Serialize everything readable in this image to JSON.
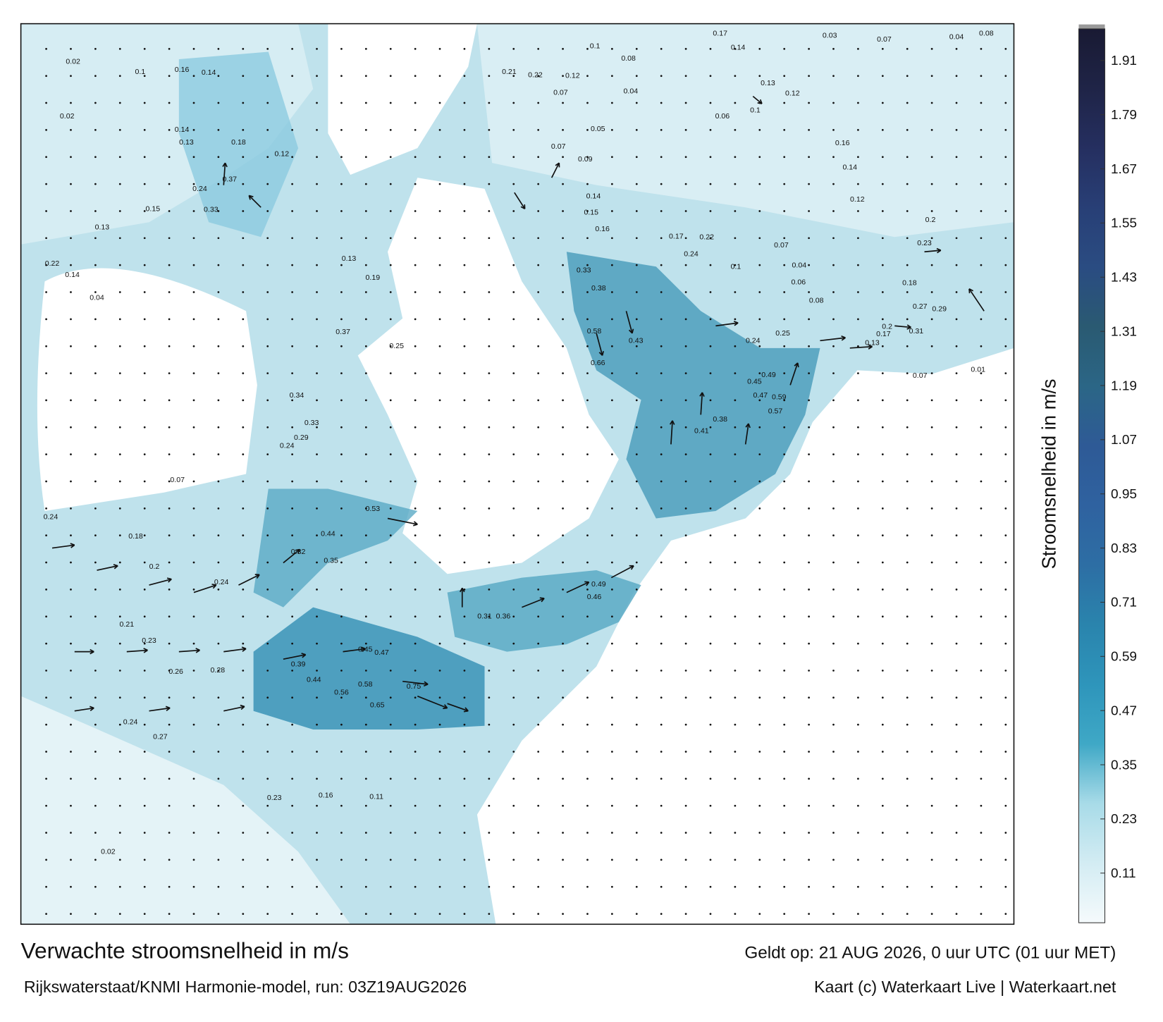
{
  "header": {
    "title": "Verwachte stroomsnelheid in m/s",
    "valid": "Geldt op: 21 AUG 2026, 0 uur UTC (01 uur MET)"
  },
  "footer": {
    "source": "Rijkswaterstaat/KNMI Harmonie-model, run: 03Z19AUG2026",
    "credit": "Kaart (c) Waterkaart Live | Waterkaart.net"
  },
  "colorbar": {
    "label": "Stroomsnelheid in m/s",
    "lim": [
      0,
      1.98
    ],
    "ticks": [
      0.11,
      0.23,
      0.35,
      0.47,
      0.59,
      0.71,
      0.83,
      0.95,
      1.07,
      1.19,
      1.31,
      1.43,
      1.55,
      1.67,
      1.79,
      1.91
    ],
    "colors": [
      "#f5fafc",
      "#d3ecf3",
      "#a8dbe8",
      "#3fa8c6",
      "#2e95bb",
      "#2a84ad",
      "#2d6ea4",
      "#2f62a0",
      "#2e5a96",
      "#2b6686",
      "#2a5a72",
      "#2a4c82",
      "#283f76",
      "#252f60",
      "#1f2447",
      "#191a33"
    ]
  },
  "map": {
    "values": [
      0.02,
      0.1,
      0.16,
      0.14,
      0.02,
      0.14,
      0.13,
      0.18,
      0.12,
      0.37,
      0.24,
      0.15,
      0.33,
      0.13,
      0.22,
      0.14,
      0.04,
      0.13,
      0.19,
      0.37,
      0.25,
      0.34,
      0.33,
      0.29,
      0.24,
      0.07,
      0.24,
      0.18,
      0.44,
      0.53,
      0.32,
      0.35,
      0.2,
      0.24,
      0.21,
      0.23,
      0.26,
      0.28,
      0.39,
      0.44,
      0.56,
      0.58,
      0.75,
      0.65,
      0.45,
      0.47,
      0.31,
      0.36,
      0.49,
      0.46,
      0.24,
      0.27,
      0.23,
      0.16,
      0.11,
      0.02,
      0.1,
      0.08,
      0.21,
      0.22,
      0.12,
      0.07,
      0.04,
      0.06,
      0.05,
      0.07,
      0.09,
      0.14,
      0.15,
      0.16,
      0.33,
      0.38,
      0.43,
      0.66,
      0.58,
      0.41,
      0.38,
      0.47,
      0.57,
      0.59,
      0.45,
      0.49,
      0.24,
      0.25,
      0.06,
      0.08,
      0.17,
      0.22,
      0.24,
      0.1,
      0.04,
      0.07,
      0.13,
      0.12,
      0.1,
      0.16,
      0.14,
      0.12,
      0.2,
      0.23,
      0.18,
      0.27,
      0.29,
      0.13,
      0.17,
      0.31,
      0.2,
      0.07,
      0.01,
      0.17,
      0.14,
      0.03,
      0.07,
      0.04,
      0.08
    ]
  }
}
